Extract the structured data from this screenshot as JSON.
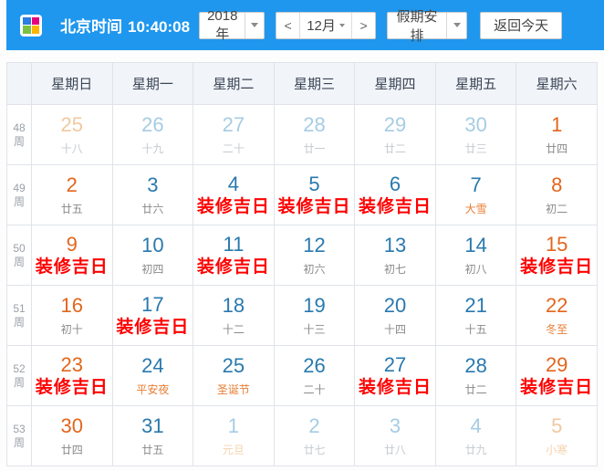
{
  "toolbar": {
    "clock_label": "北京时间",
    "clock_time": "10:40:08",
    "year_value": "2018年",
    "prev_label": "<",
    "month_value": "12月",
    "next_label": ">",
    "holiday_label": "假期安排",
    "today_label": "返回今天"
  },
  "logo_colors": [
    "#2b7de0",
    "#e6007e",
    "#7ac143",
    "#ffb400"
  ],
  "colors": {
    "header_bg": "#1f97ee",
    "weekend_date": "#e2661c",
    "weekday_date": "#2979ae",
    "muted_weekday_date": "#a6cce3",
    "muted_weekend_date": "#f1c9a0",
    "lunar_text": "#8a8a8a",
    "festival_text": "#e87e35",
    "auspicious_text": "#fe0000",
    "weekday_header_bg": "#f1f5fa"
  },
  "weekday_headers": [
    "星期日",
    "星期一",
    "星期二",
    "星期三",
    "星期四",
    "星期五",
    "星期六"
  ],
  "week_unit": "周",
  "weeks": [
    {
      "week_number": "48",
      "days": [
        {
          "date": "25",
          "label": "十八",
          "date_style": "muted-weekend",
          "label_style": "lunar-muted"
        },
        {
          "date": "26",
          "label": "十九",
          "date_style": "muted",
          "label_style": "lunar-muted"
        },
        {
          "date": "27",
          "label": "二十",
          "date_style": "muted",
          "label_style": "lunar-muted"
        },
        {
          "date": "28",
          "label": "廿一",
          "date_style": "muted",
          "label_style": "lunar-muted"
        },
        {
          "date": "29",
          "label": "廿二",
          "date_style": "muted",
          "label_style": "lunar-muted"
        },
        {
          "date": "30",
          "label": "廿三",
          "date_style": "muted",
          "label_style": "lunar-muted"
        },
        {
          "date": "1",
          "label": "廿四",
          "date_style": "weekend",
          "label_style": "lunar"
        }
      ]
    },
    {
      "week_number": "49",
      "days": [
        {
          "date": "2",
          "label": "廿五",
          "date_style": "weekend",
          "label_style": "lunar"
        },
        {
          "date": "3",
          "label": "廿六",
          "date_style": "normal",
          "label_style": "lunar"
        },
        {
          "date": "4",
          "label": "装修吉日",
          "date_style": "normal",
          "label_style": "auspicious"
        },
        {
          "date": "5",
          "label": "装修吉日",
          "date_style": "normal",
          "label_style": "auspicious"
        },
        {
          "date": "6",
          "label": "装修吉日",
          "date_style": "normal",
          "label_style": "auspicious"
        },
        {
          "date": "7",
          "label": "大雪",
          "date_style": "normal",
          "label_style": "festival"
        },
        {
          "date": "8",
          "label": "初二",
          "date_style": "weekend",
          "label_style": "lunar"
        }
      ]
    },
    {
      "week_number": "50",
      "days": [
        {
          "date": "9",
          "label": "装修吉日",
          "date_style": "weekend",
          "label_style": "auspicious"
        },
        {
          "date": "10",
          "label": "初四",
          "date_style": "normal",
          "label_style": "lunar"
        },
        {
          "date": "11",
          "label": "装修吉日",
          "date_style": "normal",
          "label_style": "auspicious"
        },
        {
          "date": "12",
          "label": "初六",
          "date_style": "normal",
          "label_style": "lunar"
        },
        {
          "date": "13",
          "label": "初七",
          "date_style": "normal",
          "label_style": "lunar"
        },
        {
          "date": "14",
          "label": "初八",
          "date_style": "normal",
          "label_style": "lunar"
        },
        {
          "date": "15",
          "label": "装修吉日",
          "date_style": "weekend",
          "label_style": "auspicious"
        }
      ]
    },
    {
      "week_number": "51",
      "days": [
        {
          "date": "16",
          "label": "初十",
          "date_style": "weekend",
          "label_style": "lunar"
        },
        {
          "date": "17",
          "label": "装修吉日",
          "date_style": "normal",
          "label_style": "auspicious"
        },
        {
          "date": "18",
          "label": "十二",
          "date_style": "normal",
          "label_style": "lunar"
        },
        {
          "date": "19",
          "label": "十三",
          "date_style": "normal",
          "label_style": "lunar"
        },
        {
          "date": "20",
          "label": "十四",
          "date_style": "normal",
          "label_style": "lunar"
        },
        {
          "date": "21",
          "label": "十五",
          "date_style": "normal",
          "label_style": "lunar"
        },
        {
          "date": "22",
          "label": "冬至",
          "date_style": "weekend",
          "label_style": "festival"
        }
      ]
    },
    {
      "week_number": "52",
      "days": [
        {
          "date": "23",
          "label": "装修吉日",
          "date_style": "weekend",
          "label_style": "auspicious"
        },
        {
          "date": "24",
          "label": "平安夜",
          "date_style": "normal",
          "label_style": "festival"
        },
        {
          "date": "25",
          "label": "圣诞节",
          "date_style": "normal",
          "label_style": "festival"
        },
        {
          "date": "26",
          "label": "二十",
          "date_style": "normal",
          "label_style": "lunar"
        },
        {
          "date": "27",
          "label": "装修吉日",
          "date_style": "normal",
          "label_style": "auspicious"
        },
        {
          "date": "28",
          "label": "廿二",
          "date_style": "normal",
          "label_style": "lunar"
        },
        {
          "date": "29",
          "label": "装修吉日",
          "date_style": "weekend",
          "label_style": "auspicious"
        }
      ]
    },
    {
      "week_number": "53",
      "days": [
        {
          "date": "30",
          "label": "廿四",
          "date_style": "weekend",
          "label_style": "lunar"
        },
        {
          "date": "31",
          "label": "廿五",
          "date_style": "normal",
          "label_style": "lunar"
        },
        {
          "date": "1",
          "label": "元旦",
          "date_style": "muted",
          "label_style": "festival-muted"
        },
        {
          "date": "2",
          "label": "廿七",
          "date_style": "muted",
          "label_style": "lunar-muted"
        },
        {
          "date": "3",
          "label": "廿八",
          "date_style": "muted",
          "label_style": "lunar-muted"
        },
        {
          "date": "4",
          "label": "廿九",
          "date_style": "muted",
          "label_style": "lunar-muted"
        },
        {
          "date": "5",
          "label": "小寒",
          "date_style": "muted-weekend",
          "label_style": "festival-muted"
        }
      ]
    }
  ]
}
